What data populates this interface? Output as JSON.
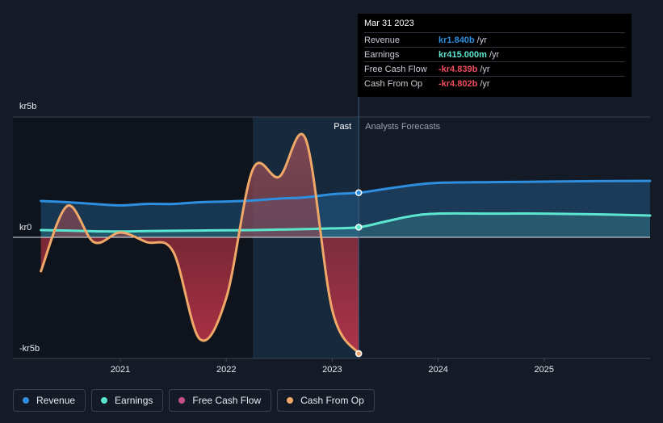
{
  "tooltip": {
    "date": "Mar 31 2023",
    "rows": [
      {
        "label": "Revenue",
        "value": "kr1.840b",
        "unit": "/yr",
        "color": "#2e8fe0"
      },
      {
        "label": "Earnings",
        "value": "kr415.000m",
        "unit": "/yr",
        "color": "#5ce6cf"
      },
      {
        "label": "Free Cash Flow",
        "value": "-kr4.839b",
        "unit": "/yr",
        "color": "#ef4d5e"
      },
      {
        "label": "Cash From Op",
        "value": "-kr4.802b",
        "unit": "/yr",
        "color": "#ef4d5e"
      }
    ]
  },
  "sections": {
    "past": "Past",
    "forecast": "Analysts Forecasts"
  },
  "legend": [
    {
      "label": "Revenue",
      "color": "#2e8fe0"
    },
    {
      "label": "Earnings",
      "color": "#5ce6cf"
    },
    {
      "label": "Free Cash Flow",
      "color": "#c8508a"
    },
    {
      "label": "Cash From Op",
      "color": "#f0a868"
    }
  ],
  "chart_data": {
    "type": "line",
    "y_ticks": [
      {
        "label": "kr5b",
        "value": 5
      },
      {
        "label": "kr0",
        "value": 0
      },
      {
        "label": "-kr5b",
        "value": -5
      }
    ],
    "x_ticks": [
      {
        "label": "2021",
        "value": 2021.0
      },
      {
        "label": "2022",
        "value": 2022.0
      },
      {
        "label": "2023",
        "value": 2023.0
      },
      {
        "label": "2024",
        "value": 2024.0
      },
      {
        "label": "2025",
        "value": 2025.0
      }
    ],
    "xlim": [
      2020.23,
      2026.0
    ],
    "ylim": [
      -5.0,
      5.0
    ],
    "divider_x": 2023.25,
    "highlight_start": 2022.25,
    "series": [
      {
        "name": "Revenue",
        "color": "#2e8fe0",
        "points": [
          [
            2020.25,
            1.5
          ],
          [
            2020.5,
            1.45
          ],
          [
            2020.75,
            1.38
          ],
          [
            2021.0,
            1.32
          ],
          [
            2021.25,
            1.38
          ],
          [
            2021.5,
            1.38
          ],
          [
            2021.75,
            1.45
          ],
          [
            2022.0,
            1.48
          ],
          [
            2022.25,
            1.52
          ],
          [
            2022.5,
            1.6
          ],
          [
            2022.75,
            1.65
          ],
          [
            2023.0,
            1.78
          ],
          [
            2023.25,
            1.84
          ],
          [
            2023.5,
            2.0
          ],
          [
            2023.75,
            2.15
          ],
          [
            2024.0,
            2.25
          ],
          [
            2024.5,
            2.28
          ],
          [
            2025.0,
            2.3
          ],
          [
            2025.5,
            2.32
          ],
          [
            2026.0,
            2.33
          ]
        ],
        "marker_x": 2023.25
      },
      {
        "name": "Earnings",
        "color": "#5ce6cf",
        "points": [
          [
            2020.25,
            0.3
          ],
          [
            2020.5,
            0.28
          ],
          [
            2020.75,
            0.25
          ],
          [
            2021.0,
            0.24
          ],
          [
            2021.25,
            0.26
          ],
          [
            2021.5,
            0.27
          ],
          [
            2021.75,
            0.28
          ],
          [
            2022.0,
            0.29
          ],
          [
            2022.25,
            0.3
          ],
          [
            2022.5,
            0.32
          ],
          [
            2022.75,
            0.34
          ],
          [
            2023.0,
            0.37
          ],
          [
            2023.25,
            0.415
          ],
          [
            2023.5,
            0.65
          ],
          [
            2023.75,
            0.88
          ],
          [
            2024.0,
            0.98
          ],
          [
            2024.5,
            0.98
          ],
          [
            2025.0,
            0.98
          ],
          [
            2025.5,
            0.95
          ],
          [
            2026.0,
            0.9
          ]
        ],
        "marker_x": 2023.25
      },
      {
        "name": "Cash From Op",
        "color": "#f0a868",
        "points": [
          [
            2020.25,
            -1.4
          ],
          [
            2020.5,
            1.3
          ],
          [
            2020.75,
            -0.2
          ],
          [
            2021.0,
            0.2
          ],
          [
            2021.25,
            -0.2
          ],
          [
            2021.5,
            -0.6
          ],
          [
            2021.75,
            -4.2
          ],
          [
            2022.0,
            -2.5
          ],
          [
            2022.25,
            2.8
          ],
          [
            2022.5,
            2.5
          ],
          [
            2022.75,
            4.05
          ],
          [
            2023.0,
            -3.0
          ],
          [
            2023.25,
            -4.802
          ]
        ],
        "marker_x": 2023.25
      }
    ]
  }
}
